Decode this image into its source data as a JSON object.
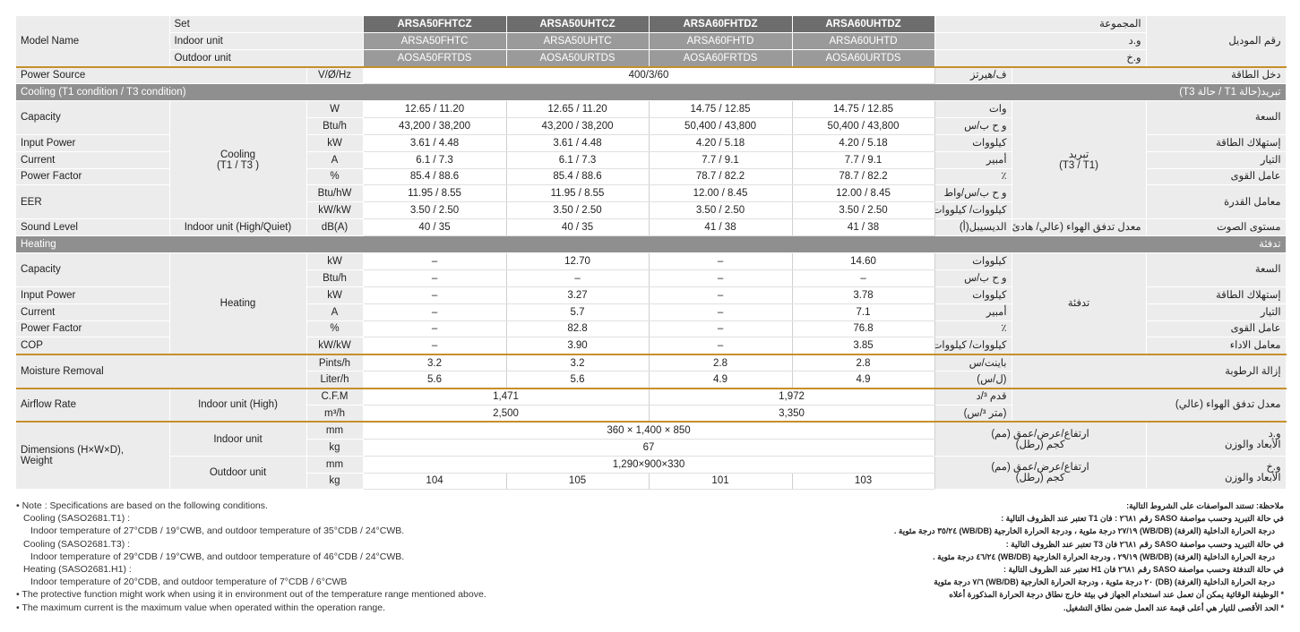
{
  "models": {
    "set": [
      "ARSA50FHTCZ",
      "ARSA50UHTCZ",
      "ARSA60FHTDZ",
      "ARSA60UHTDZ"
    ],
    "indoor": [
      "ARSA50FHTC",
      "ARSA50UHTC",
      "ARSA60FHTD",
      "ARSA60UHTD"
    ],
    "outdoor": [
      "AOSA50FRTDS",
      "AOSA50URTDS",
      "AOSA60FRTDS",
      "AOSA60URTDS"
    ]
  },
  "labels": {
    "model_name": "Model Name",
    "model_name_ar": "رقم الموديل",
    "set": "Set",
    "set_ar": "المجموعة",
    "indoor_unit": "Indoor unit",
    "indoor_ar": "و.د",
    "outdoor_unit": "Outdoor unit",
    "outdoor_ar": "و.خ",
    "power_source": "Power Source",
    "power_unit": "V/Ø/Hz",
    "power_value": "400/3/60",
    "power_unit_ar": "ف/هيرتز",
    "power_source_ar": "دخل الطاقة",
    "cooling_section": "Cooling (T1 condition / T3 condition)",
    "cooling_section_ar": "تبريد(حالة T1 / حالة T3)",
    "capacity": "Capacity",
    "capacity_ar": "السعة",
    "input_power": "Input Power",
    "input_power_ar": "إستهلاك الطاقة",
    "current": "Current",
    "current_ar": "التيار",
    "power_factor": "Power Factor",
    "power_factor_ar": "عامل القوى",
    "eer": "EER",
    "eer_ar": "معامل القدرة",
    "sound_level": "Sound Level",
    "sound_level_ar": "مستوى الصوت",
    "cooling_group_1": "Cooling",
    "cooling_group_2": "(T1 / T3 )",
    "cooling_group_ar_1": "تبريد",
    "cooling_group_ar_2": "(T3 / T1)",
    "sound_sub": "Indoor unit (High/Quiet)",
    "sound_sub_ar": "معدل تدفق الهواء (عالي/ هادئ)",
    "heating_section": "Heating",
    "heating_section_ar": "تدفئة",
    "heating_group": "Heating",
    "heating_group_ar": "تدفئة",
    "cop": "COP",
    "cop_ar": "معامل الاداء",
    "moisture": "Moisture Removal",
    "moisture_ar": "إزالة الرطوبة",
    "airflow": "Airflow Rate",
    "airflow_sub": "Indoor unit (High)",
    "airflow_ar": "معدل تدفق الهواء (عالي)",
    "dimensions_1": "Dimensions (H×W×D),",
    "dimensions_2": "Weight",
    "dim_indoor": "Indoor unit",
    "dim_outdoor": "Outdoor unit",
    "dim_ar_indoor_1": "و.د",
    "dim_ar_indoor_2": "الأبعاد والوزن",
    "dim_ar_outdoor_1": "و.خ",
    "dim_ar_outdoor_2": "الأبعاد والوزن",
    "dim_size_ar": "ارتفاع/عرض/عمق (مم)",
    "dim_weight_ar": "كجم (رطل)"
  },
  "units": {
    "W": "W",
    "W_ar": "وات",
    "btuh": "Btu/h",
    "btuh_ar": "و ح ب/س",
    "kW": "kW",
    "kW_ar": "كيلووات",
    "A": "A",
    "A_ar": "أمبير",
    "pct": "%",
    "pct_ar": "٪",
    "btuhw": "Btu/hW",
    "btuhw_ar": "و ح ب/س/واط",
    "kwkw": "kW/kW",
    "kwkw_ar": "كيلووات/ كيلووات",
    "dba": "dB(A)",
    "dba_ar": "الديسيبل(أ)",
    "pints": "Pints/h",
    "pints_ar": "باينت/س",
    "liter": "Liter/h",
    "liter_ar": "(ل/س)",
    "cfm": "C.F.M",
    "cfm_ar": "قدم ³/د",
    "m3h": "m³/h",
    "m3h_ar": "(متر ³/س)",
    "mm": "mm",
    "kg": "kg"
  },
  "cooling": {
    "capacity_w": [
      "12.65 / 11.20",
      "12.65 / 11.20",
      "14.75 / 12.85",
      "14.75 / 12.85"
    ],
    "capacity_btu": [
      "43,200 / 38,200",
      "43,200 / 38,200",
      "50,400 / 43,800",
      "50,400 / 43,800"
    ],
    "input_power": [
      "3.61 / 4.48",
      "3.61 / 4.48",
      "4.20 / 5.18",
      "4.20 / 5.18"
    ],
    "current": [
      "6.1 / 7.3",
      "6.1 / 7.3",
      "7.7 / 9.1",
      "7.7 / 9.1"
    ],
    "power_factor": [
      "85.4 / 88.6",
      "85.4 / 88.6",
      "78.7 / 82.2",
      "78.7 / 82.2"
    ],
    "eer_btu": [
      "11.95 / 8.55",
      "11.95 / 8.55",
      "12.00 / 8.45",
      "12.00 / 8.45"
    ],
    "eer_kw": [
      "3.50 / 2.50",
      "3.50 / 2.50",
      "3.50 / 2.50",
      "3.50 / 2.50"
    ],
    "sound": [
      "40 / 35",
      "40 / 35",
      "41 / 38",
      "41 / 38"
    ]
  },
  "heating": {
    "capacity_kw": [
      "–",
      "12.70",
      "–",
      "14.60"
    ],
    "capacity_btu": [
      "–",
      "–",
      "–",
      "–"
    ],
    "input_power": [
      "–",
      "3.27",
      "–",
      "3.78"
    ],
    "current": [
      "–",
      "5.7",
      "–",
      "7.1"
    ],
    "power_factor": [
      "–",
      "82.8",
      "–",
      "76.8"
    ],
    "cop": [
      "–",
      "3.90",
      "–",
      "3.85"
    ]
  },
  "moisture": {
    "pints": [
      "3.2",
      "3.2",
      "2.8",
      "2.8"
    ],
    "liter": [
      "5.6",
      "5.6",
      "4.9",
      "4.9"
    ]
  },
  "airflow": {
    "cfm": [
      "1,471",
      "1,972"
    ],
    "m3h": [
      "2,500",
      "3,350"
    ]
  },
  "dimensions": {
    "indoor_mm": "360 × 1,400 × 850",
    "indoor_kg": "67",
    "outdoor_mm": "1,290×900×330",
    "outdoor_kg": [
      "104",
      "105",
      "101",
      "103"
    ]
  },
  "notes_en": [
    "• Note : Specifications are based on the following conditions.",
    "Cooling (SASO2681.T1) :",
    "Indoor temperature of 27°CDB / 19°CWB, and outdoor temperature of 35°CDB / 24°CWB.",
    "Cooling (SASO2681.T3) :",
    "Indoor temperature of 29°CDB / 19°CWB, and outdoor temperature of 46°CDB / 24°CWB.",
    "Heating (SASO2681.H1) :",
    "Indoor temperature of 20°CDB, and outdoor temperature of  7°CDB / 6°CWB",
    "• The protective function might work when using it in environment out of the temperature range mentioned above.",
    "• The maximum current is the maximum value when operated within the operation range."
  ],
  "notes_ar": [
    "ملاحظة: تستند المواصفات على الشروط التالية:",
    "في حالة التبريد وحسب مواصفة SASO رقم ٢٦٨١ : فان T1 تعتبر عند الظروف التالية :",
    "درجة الحرارة الداخلية (الغرفة) (WB/DB) ٢٧/١٩ درجة مئوية ، ودرجة الحرارة الخارجية (WB/DB) ٣٥/٢٤ درجة مئوية .",
    "في حالة التبريد وحسب مواصفة SASO رقم ٢٦٨١ فان T3 تعتبر عند الظروف التالية :",
    "درجة الحرارة الداخلية (الغرفة) (WB/DB) ٢٩/١٩ ، ودرجة الحرارة الخارجية (WB/DB) ٤٦/٢٤ درجة مئوية .",
    "في حالة التدفئة وحسب مواصفة SASO رقم ٢٦٨١ فان H1 تعتبر عند الظروف التالية :",
    "درجة الحرارة الداخلية (الغرفة) (DB) ٢٠ درجة مئوية ، ودرجة الحرارة الخارجية (WB/DB) ٧/٦ درجة مئوية",
    "* الوظيفة الوقائية يمكن أن تعمل عند استخدام الجهاز في بيئة خارج نطاق درجة الحرارة المذكورة أعلاه",
    "* الحد الأقصى للتيار هي أعلى قيمة عند العمل ضمن نطاق التشغيل."
  ]
}
